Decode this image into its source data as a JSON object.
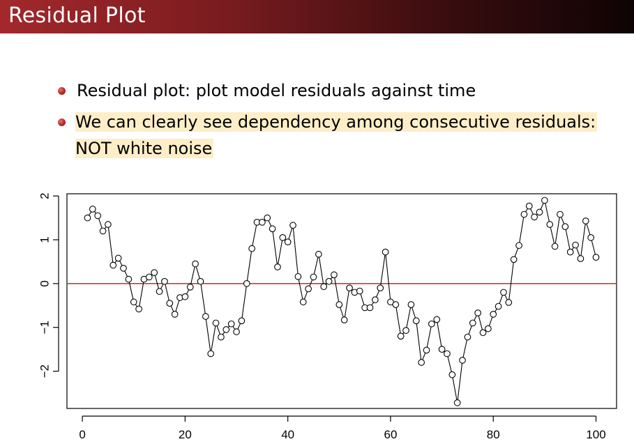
{
  "slide": {
    "title": "Residual Plot",
    "bullets": [
      {
        "text": "Residual plot: plot model residuals against time",
        "highlighted": false
      },
      {
        "lines": [
          "We can clearly see dependency among consecutive residuals:",
          "NOT white noise"
        ],
        "highlighted": true
      }
    ],
    "colors": {
      "title_bar_start": "#a3282c",
      "title_bar_end": "#0e0304",
      "highlight": "#fdeec8",
      "bullet": "#b52a25",
      "reference_line": "#d23b2a"
    }
  },
  "chart_data": {
    "type": "line",
    "title": "",
    "xlabel": "",
    "ylabel": "",
    "xlim": [
      -3,
      104
    ],
    "ylim": [
      -2.85,
      2.05
    ],
    "x_ticks": [
      0,
      20,
      40,
      60,
      80,
      100
    ],
    "y_ticks": [
      -2,
      -1,
      0,
      1,
      2
    ],
    "x_tick_labels": [
      "0",
      "20",
      "40",
      "60",
      "80",
      "100"
    ],
    "y_tick_labels": [
      "−2",
      "−1",
      "0",
      "1",
      "2"
    ],
    "markers": "open-circle",
    "grid": false,
    "reference_line": {
      "y": 0,
      "color": "#d23b2a"
    },
    "series": [
      {
        "x": [
          1,
          2,
          3,
          4,
          5,
          6,
          7,
          8,
          9,
          10,
          11,
          12,
          13,
          14,
          15,
          16,
          17,
          18,
          19,
          20,
          21,
          22,
          23,
          24,
          25,
          26,
          27,
          28,
          29,
          30,
          31,
          32,
          33,
          34,
          35,
          36,
          37,
          38,
          39,
          40,
          41,
          42,
          43,
          44,
          45,
          46,
          47,
          48,
          49,
          50,
          51,
          52,
          53,
          54,
          55,
          56,
          57,
          58,
          59,
          60,
          61,
          62,
          63,
          64,
          65,
          66,
          67,
          68,
          69,
          70,
          71,
          72,
          73,
          74,
          75,
          76,
          77,
          78,
          79,
          80,
          81,
          82,
          83,
          84,
          85,
          86,
          87,
          88,
          89,
          90,
          91,
          92,
          93,
          94,
          95,
          96,
          97,
          98,
          99,
          100
        ],
        "values": [
          1.5,
          1.7,
          1.55,
          1.2,
          1.35,
          0.42,
          0.58,
          0.35,
          0.1,
          -0.42,
          -0.58,
          0.1,
          0.15,
          0.25,
          -0.18,
          0.05,
          -0.45,
          -0.7,
          -0.32,
          -0.3,
          -0.08,
          0.45,
          0.05,
          -0.75,
          -1.6,
          -0.9,
          -1.22,
          -1.05,
          -0.92,
          -1.1,
          -0.85,
          0.0,
          0.8,
          1.4,
          1.4,
          1.5,
          1.25,
          0.38,
          1.05,
          0.95,
          1.33,
          0.16,
          -0.42,
          -0.12,
          0.15,
          0.67,
          -0.07,
          0.05,
          0.2,
          -0.48,
          -0.83,
          -0.1,
          -0.2,
          -0.17,
          -0.55,
          -0.55,
          -0.37,
          -0.1,
          0.72,
          -0.42,
          -0.48,
          -1.2,
          -1.07,
          -0.48,
          -0.85,
          -1.8,
          -1.52,
          -0.92,
          -0.82,
          -1.5,
          -1.6,
          -2.08,
          -2.72,
          -1.75,
          -1.22,
          -0.9,
          -0.67,
          -1.12,
          -1.03,
          -0.7,
          -0.52,
          -0.2,
          -0.43,
          0.55,
          0.87,
          1.58,
          1.77,
          1.52,
          1.63,
          1.9,
          1.35,
          0.85,
          1.58,
          1.3,
          0.72,
          0.88,
          0.57,
          1.43,
          1.05,
          0.6
        ]
      }
    ]
  }
}
